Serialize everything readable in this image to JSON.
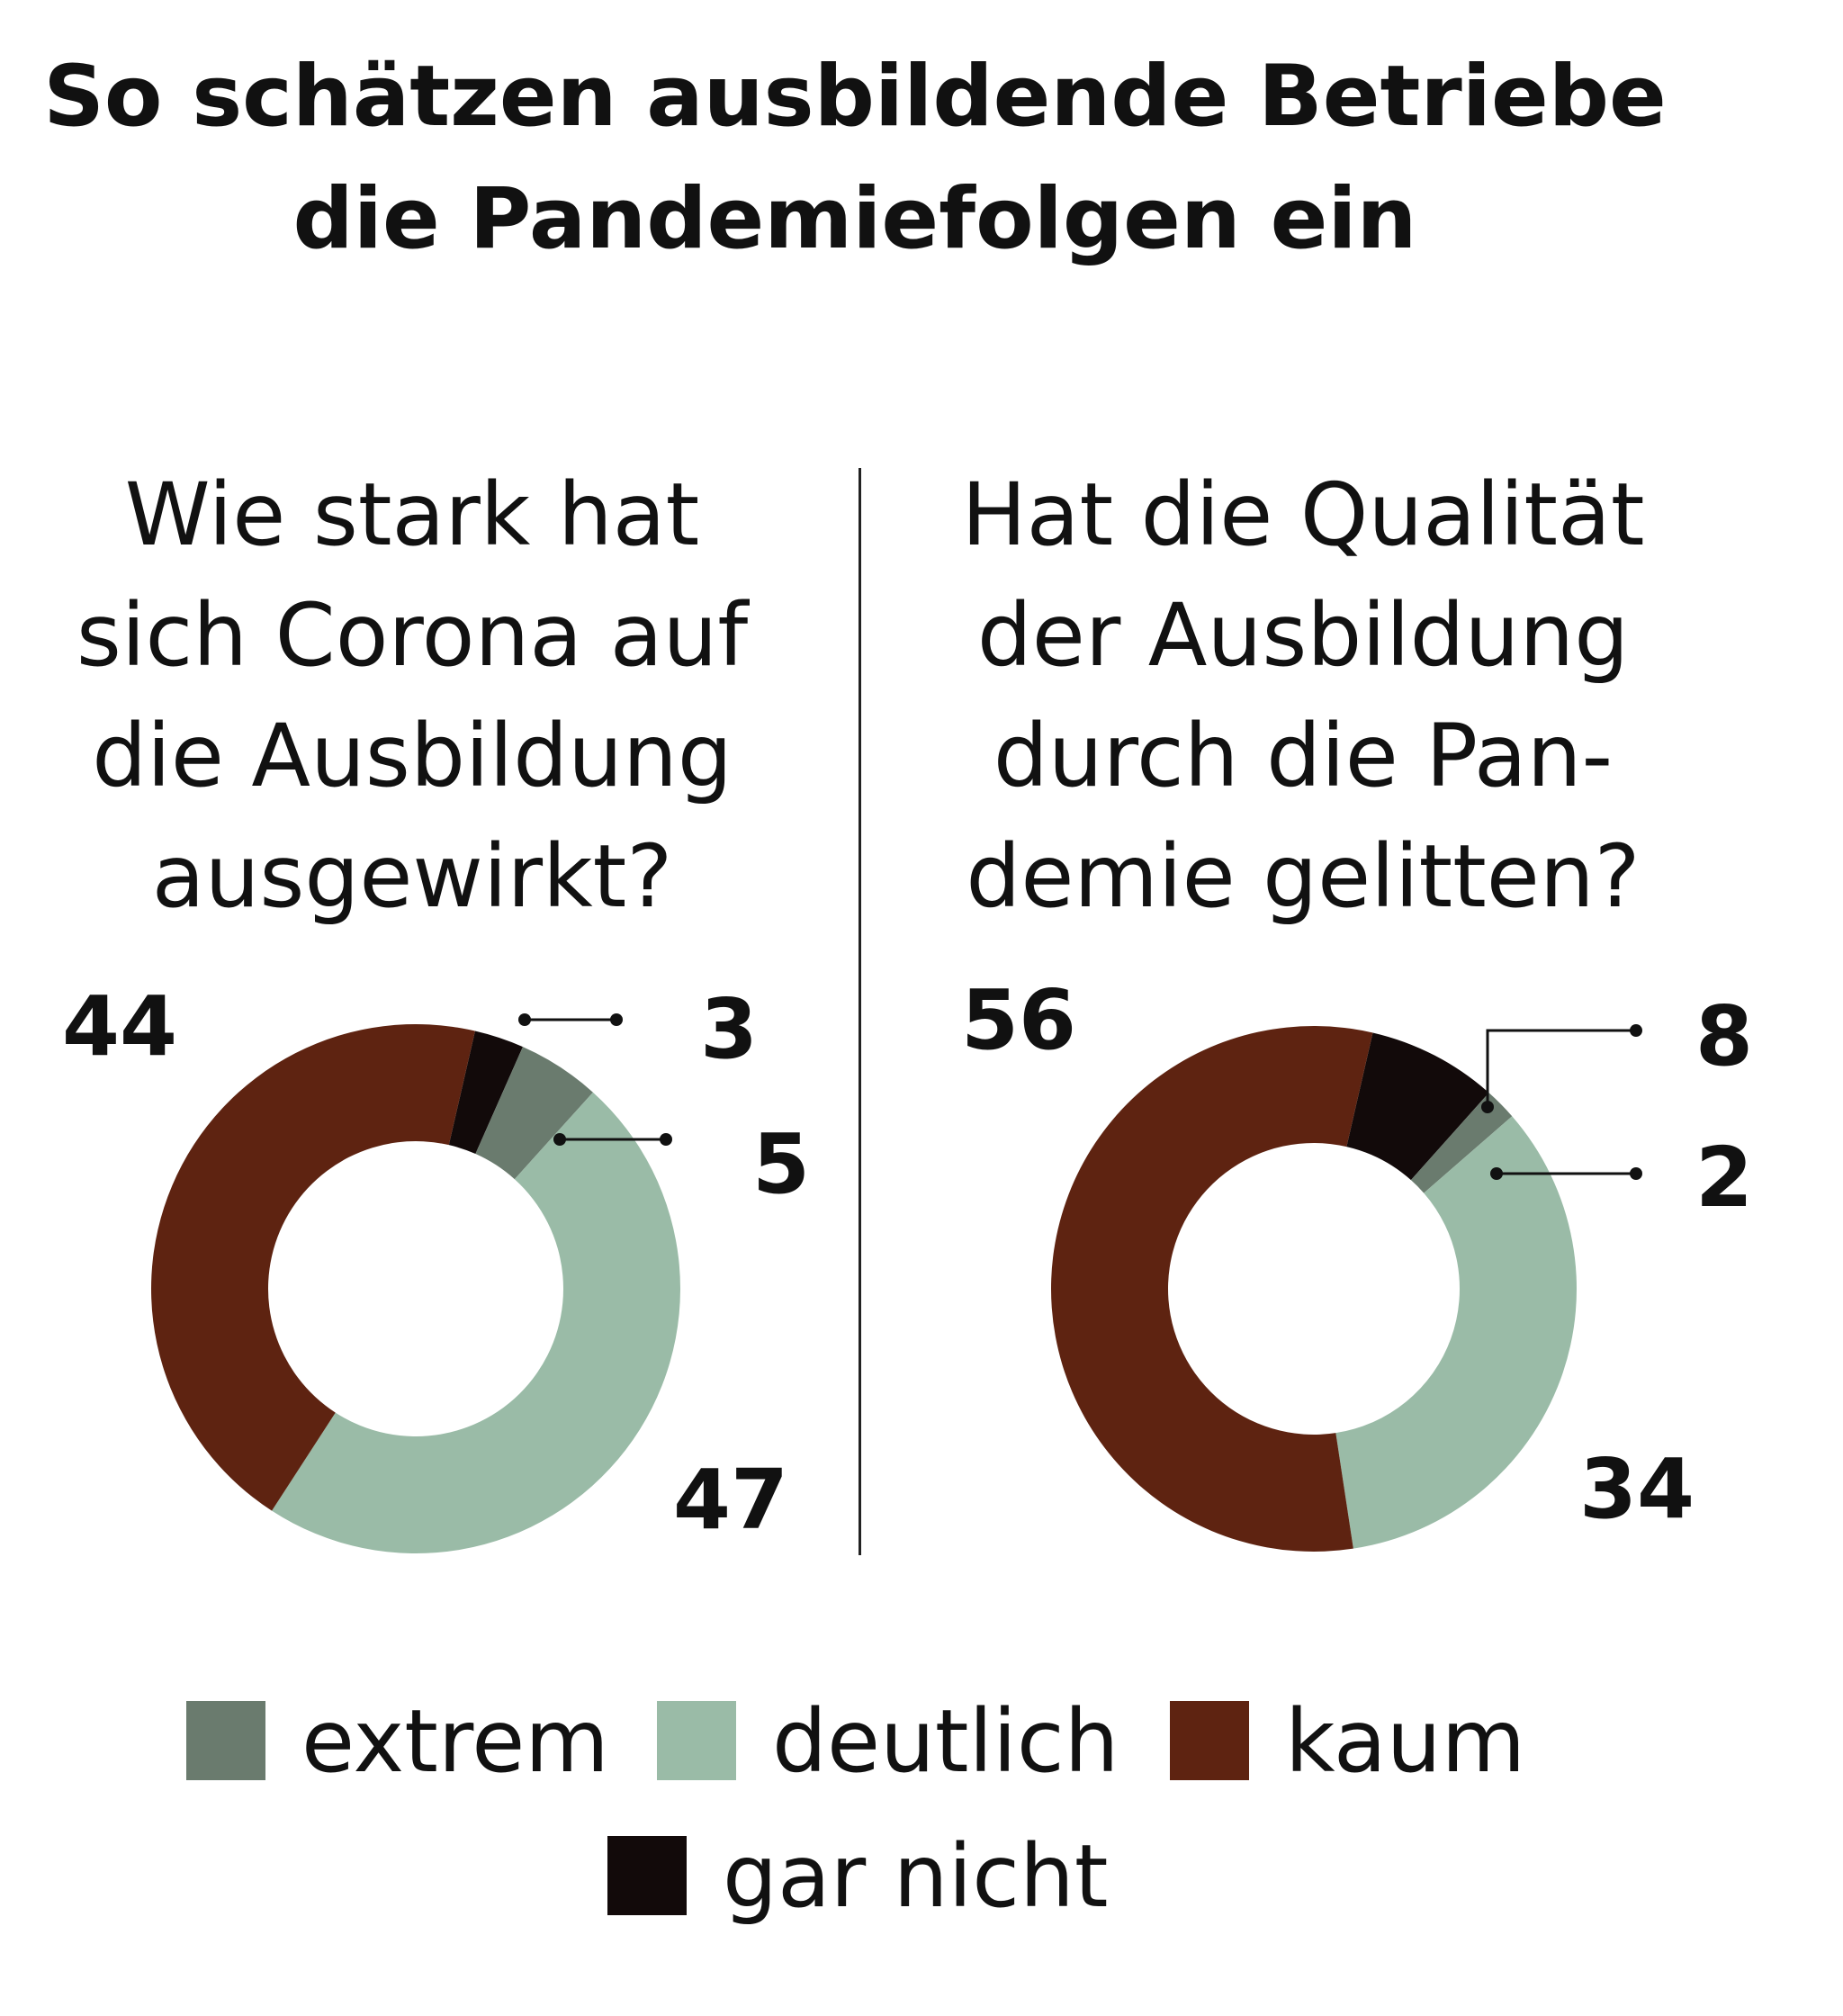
{
  "title": [
    "So schätzen ausbildende Betriebe",
    "die Pandemiefolgen ein"
  ],
  "colors": {
    "extrem": "#6a7b6e",
    "deutlich": "#9abba7",
    "kaum": "#5e2311",
    "gar nicht": "#120a0a",
    "divider": "#222222"
  },
  "chart_data": [
    {
      "type": "pie",
      "variant": "donut",
      "question": [
        "Wie stark hat",
        "sich Corona auf",
        "die Ausbildung",
        "ausgewirkt?"
      ],
      "categories": [
        "gar nicht",
        "extrem",
        "deutlich",
        "kaum"
      ],
      "values": [
        3,
        5,
        47,
        44
      ],
      "value_labels": [
        "3",
        "5",
        "47",
        "44"
      ]
    },
    {
      "type": "pie",
      "variant": "donut",
      "question": [
        "Hat die Qualität",
        "der Ausbildung",
        "durch die Pan-",
        "demie gelitten?"
      ],
      "categories": [
        "gar nicht",
        "extrem",
        "deutlich",
        "kaum"
      ],
      "values": [
        8,
        2,
        34,
        56
      ],
      "value_labels": [
        "8",
        "2",
        "34",
        "56"
      ]
    }
  ],
  "legend": [
    [
      "extrem",
      "deutlich",
      "kaum"
    ],
    [
      "gar nicht"
    ]
  ]
}
